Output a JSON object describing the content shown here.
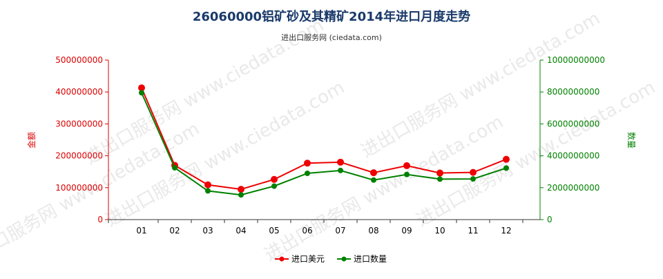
{
  "chart_data": {
    "type": "line",
    "title": "26060000铝矿砂及其精矿2014年进口月度走势",
    "subtitle": "进出口服务网 (ciedata.com)",
    "watermark": "进出口服务网 www.ciedata.com",
    "categories": [
      "01",
      "02",
      "03",
      "04",
      "05",
      "06",
      "07",
      "08",
      "09",
      "10",
      "11",
      "12"
    ],
    "y_left": {
      "label": "金额",
      "min": 0,
      "max": 500000000,
      "ticks": [
        "0",
        "100000000",
        "200000000",
        "300000000",
        "400000000",
        "500000000"
      ],
      "tick_values": [
        0,
        100000000,
        200000000,
        300000000,
        400000000,
        500000000
      ],
      "color": "#dd0000"
    },
    "y_right": {
      "label": "数量",
      "min": 0,
      "max": 10000000000,
      "ticks": [
        "0",
        "2000000000",
        "4000000000",
        "6000000000",
        "8000000000",
        "10000000000"
      ],
      "tick_values": [
        0,
        2000000000,
        4000000000,
        6000000000,
        8000000000,
        10000000000
      ],
      "color": "#008000"
    },
    "series": [
      {
        "name": "进口美元",
        "axis": "left",
        "color": "#ee0000",
        "values": [
          413000000,
          170000000,
          109000000,
          95000000,
          126000000,
          177000000,
          180000000,
          147000000,
          169000000,
          146000000,
          148000000,
          189000000
        ]
      },
      {
        "name": "进口数量",
        "axis": "right",
        "color": "#008000",
        "values": [
          7950000000,
          3250000000,
          1800000000,
          1550000000,
          2100000000,
          2900000000,
          3080000000,
          2480000000,
          2830000000,
          2540000000,
          2550000000,
          3230000000
        ]
      }
    ],
    "grid": false,
    "legend_position": "bottom-center"
  }
}
